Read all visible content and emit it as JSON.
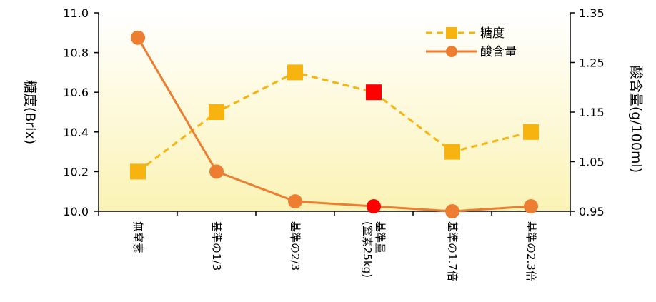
{
  "chart_data": {
    "type": "line",
    "categories": [
      "無窒素",
      "基準の1/3",
      "基準の2/3",
      "基準量(窒素25kg)",
      "基準の1.7倍",
      "基準の2.3倍"
    ],
    "category_label_lines": [
      [
        "無窒素"
      ],
      [
        "基準の1/3"
      ],
      [
        "基準の2/3"
      ],
      [
        "基準量",
        "(窒素25kg)"
      ],
      [
        "基準の1.7倍"
      ],
      [
        "基準の2.3倍"
      ]
    ],
    "series": [
      {
        "name": "糖度",
        "axis": "left",
        "style": "dashed",
        "marker": "square",
        "color": "#F7B30F",
        "values": [
          10.2,
          10.5,
          10.7,
          10.6,
          10.3,
          10.4
        ],
        "highlight_index": 3,
        "highlight_color": "#FF0000"
      },
      {
        "name": "酸含量",
        "axis": "right",
        "style": "solid",
        "marker": "circle",
        "color": "#ED7D31",
        "values": [
          1.3,
          1.03,
          0.97,
          0.96,
          0.95,
          0.96
        ],
        "highlight_index": 3,
        "highlight_color": "#FF0000"
      }
    ],
    "y_left": {
      "label": "糖度(Brix)",
      "ylim": [
        10.0,
        11.0
      ],
      "ticks": [
        "10.0",
        "10.2",
        "10.4",
        "10.6",
        "10.8",
        "11.0"
      ]
    },
    "y_right": {
      "label": "酸含量(g/100ml)",
      "ylim": [
        0.95,
        1.35
      ],
      "ticks": [
        "0.95",
        "1.05",
        "1.15",
        "1.25",
        "1.35"
      ]
    },
    "legend_position": "top-right",
    "grid": false,
    "plot_background": "gradient white to light yellow"
  }
}
